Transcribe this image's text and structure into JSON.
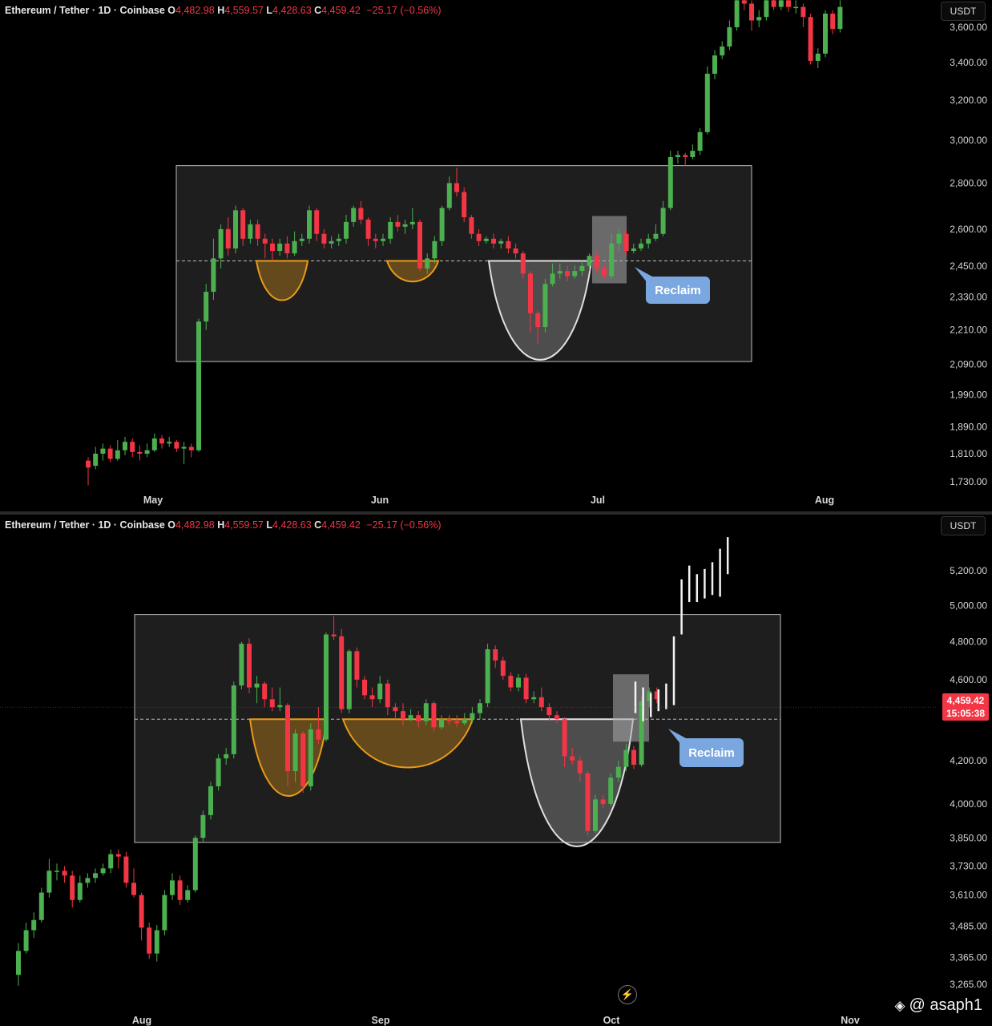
{
  "legend": {
    "symbol": "Ethereum / Tether · 1D · Coinbase",
    "open_label": "O",
    "open": "4,482.98",
    "high_label": "H",
    "high": "4,559.57",
    "low_label": "L",
    "low": "4,428.63",
    "close_label": "C",
    "close": "4,459.42",
    "change": "−25.17 (−0.56%)"
  },
  "unit": "USDT",
  "watermark": "@ asaph1",
  "colors": {
    "up": "#4caf50",
    "down": "#f23645",
    "bg": "#000000",
    "range_box": "#1e1e1e",
    "bowl_orange": "#e89a1a",
    "bowl_white": "#e0e0e0",
    "callout": "#7aa7e0"
  },
  "chart_data": [
    {
      "type": "candlestick",
      "panel": "top",
      "title": "",
      "x_ticks": [
        "May",
        "Jun",
        "Jul",
        "Aug"
      ],
      "y_ticks": [
        "3,600.00",
        "3,400.00",
        "3,200.00",
        "3,000.00",
        "2,800.00",
        "2,600.00",
        "2,450.00",
        "2,330.00",
        "2,210.00",
        "2,090.00",
        "1,990.00",
        "1,890.00",
        "1,810.00",
        "1,730.00"
      ],
      "y_scale": "log",
      "range_box": {
        "top": 2880,
        "bottom": 2100,
        "mid_dashed": 2470
      },
      "annotations": [
        {
          "type": "bowl",
          "color": "orange",
          "bottom": 2320
        },
        {
          "type": "bowl",
          "color": "orange",
          "bottom": 2390
        },
        {
          "type": "bowl",
          "color": "white",
          "bottom": 2110
        },
        {
          "type": "highlight",
          "label": ""
        },
        {
          "type": "callout",
          "text": "Reclaim"
        }
      ],
      "candles": [
        [
          1790,
          1770,
          1800,
          1720
        ],
        [
          1775,
          1810,
          1830,
          1765
        ],
        [
          1810,
          1825,
          1840,
          1790
        ],
        [
          1825,
          1795,
          1835,
          1785
        ],
        [
          1795,
          1820,
          1850,
          1790
        ],
        [
          1820,
          1845,
          1860,
          1805
        ],
        [
          1845,
          1815,
          1855,
          1800
        ],
        [
          1815,
          1810,
          1835,
          1790
        ],
        [
          1810,
          1820,
          1840,
          1800
        ],
        [
          1820,
          1855,
          1870,
          1815
        ],
        [
          1855,
          1840,
          1865,
          1825
        ],
        [
          1840,
          1845,
          1860,
          1830
        ],
        [
          1845,
          1825,
          1850,
          1815
        ],
        [
          1825,
          1830,
          1845,
          1780
        ],
        [
          1830,
          1820,
          1840,
          1800
        ],
        [
          1820,
          2240,
          2250,
          1815
        ],
        [
          2240,
          2350,
          2380,
          2210
        ],
        [
          2350,
          2480,
          2560,
          2320
        ],
        [
          2480,
          2600,
          2620,
          2440
        ],
        [
          2600,
          2520,
          2650,
          2490
        ],
        [
          2520,
          2680,
          2700,
          2500
        ],
        [
          2680,
          2560,
          2690,
          2530
        ],
        [
          2560,
          2620,
          2640,
          2540
        ],
        [
          2620,
          2560,
          2640,
          2530
        ],
        [
          2560,
          2540,
          2580,
          2480
        ],
        [
          2540,
          2510,
          2560,
          2470
        ],
        [
          2510,
          2540,
          2560,
          2490
        ],
        [
          2540,
          2500,
          2570,
          2480
        ],
        [
          2500,
          2550,
          2590,
          2490
        ],
        [
          2550,
          2560,
          2580,
          2530
        ],
        [
          2560,
          2680,
          2700,
          2540
        ],
        [
          2680,
          2580,
          2690,
          2550
        ],
        [
          2580,
          2540,
          2600,
          2520
        ],
        [
          2540,
          2550,
          2570,
          2520
        ],
        [
          2550,
          2560,
          2580,
          2530
        ],
        [
          2560,
          2630,
          2660,
          2540
        ],
        [
          2630,
          2690,
          2700,
          2610
        ],
        [
          2690,
          2640,
          2720,
          2620
        ],
        [
          2640,
          2560,
          2650,
          2530
        ],
        [
          2560,
          2550,
          2580,
          2520
        ],
        [
          2550,
          2560,
          2580,
          2530
        ],
        [
          2560,
          2630,
          2650,
          2540
        ],
        [
          2630,
          2610,
          2660,
          2590
        ],
        [
          2610,
          2620,
          2640,
          2580
        ],
        [
          2620,
          2630,
          2690,
          2600
        ],
        [
          2630,
          2440,
          2640,
          2430
        ],
        [
          2440,
          2480,
          2500,
          2420
        ],
        [
          2480,
          2550,
          2570,
          2460
        ],
        [
          2550,
          2690,
          2700,
          2530
        ],
        [
          2690,
          2800,
          2830,
          2680
        ],
        [
          2800,
          2760,
          2870,
          2740
        ],
        [
          2760,
          2650,
          2780,
          2630
        ],
        [
          2650,
          2580,
          2660,
          2560
        ],
        [
          2580,
          2550,
          2600,
          2530
        ],
        [
          2550,
          2560,
          2570,
          2540
        ],
        [
          2560,
          2540,
          2580,
          2520
        ],
        [
          2540,
          2550,
          2560,
          2520
        ],
        [
          2550,
          2520,
          2570,
          2500
        ],
        [
          2520,
          2500,
          2540,
          2480
        ],
        [
          2500,
          2420,
          2510,
          2400
        ],
        [
          2420,
          2270,
          2430,
          2200
        ],
        [
          2270,
          2220,
          2280,
          2160
        ],
        [
          2220,
          2380,
          2400,
          2200
        ],
        [
          2380,
          2420,
          2460,
          2370
        ],
        [
          2420,
          2430,
          2460,
          2400
        ],
        [
          2430,
          2410,
          2450,
          2390
        ],
        [
          2410,
          2430,
          2450,
          2400
        ],
        [
          2430,
          2450,
          2470,
          2410
        ],
        [
          2450,
          2490,
          2500,
          2430
        ],
        [
          2490,
          2440,
          2510,
          2420
        ],
        [
          2440,
          2410,
          2460,
          2400
        ],
        [
          2410,
          2540,
          2580,
          2400
        ],
        [
          2540,
          2580,
          2600,
          2510
        ],
        [
          2580,
          2510,
          2600,
          2490
        ],
        [
          2510,
          2520,
          2540,
          2500
        ],
        [
          2520,
          2540,
          2560,
          2510
        ],
        [
          2540,
          2560,
          2580,
          2520
        ],
        [
          2560,
          2580,
          2620,
          2550
        ],
        [
          2580,
          2690,
          2720,
          2570
        ],
        [
          2690,
          2920,
          2950,
          2680
        ],
        [
          2920,
          2930,
          2950,
          2890
        ],
        [
          2930,
          2920,
          2940,
          2880
        ],
        [
          2920,
          2950,
          2980,
          2910
        ],
        [
          2950,
          3040,
          3060,
          2930
        ],
        [
          3040,
          3340,
          3380,
          3030
        ],
        [
          3340,
          3440,
          3470,
          3310
        ],
        [
          3440,
          3490,
          3520,
          3420
        ],
        [
          3490,
          3600,
          3640,
          3470
        ],
        [
          3600,
          3760,
          3800,
          3580
        ],
        [
          3760,
          3740,
          3790,
          3700
        ],
        [
          3740,
          3640,
          3760,
          3580
        ],
        [
          3640,
          3660,
          3700,
          3600
        ],
        [
          3660,
          3760,
          3790,
          3640
        ],
        [
          3760,
          3720,
          3790,
          3700
        ],
        [
          3720,
          3760,
          3780,
          3700
        ],
        [
          3760,
          3720,
          3790,
          3690
        ],
        [
          3720,
          3720,
          3760,
          3680
        ],
        [
          3720,
          3660,
          3740,
          3600
        ],
        [
          3660,
          3410,
          3680,
          3390
        ],
        [
          3410,
          3450,
          3480,
          3370
        ],
        [
          3450,
          3680,
          3700,
          3430
        ],
        [
          3680,
          3590,
          3700,
          3560
        ],
        [
          3590,
          3720,
          3760,
          3570
        ]
      ]
    },
    {
      "type": "candlestick",
      "panel": "bottom",
      "title": "",
      "x_ticks": [
        "Aug",
        "Sep",
        "Oct",
        "Nov"
      ],
      "y_ticks": [
        "5,200.00",
        "5,000.00",
        "4,800.00",
        "4,600.00",
        "4,200.00",
        "4,000.00",
        "3,850.00",
        "3,730.00",
        "3,610.00",
        "3,485.00",
        "3,365.00",
        "3,265.00"
      ],
      "y_scale": "log",
      "last_price": "4,459.42",
      "countdown": "15:05:38",
      "range_box": {
        "top": 4950,
        "bottom": 3830,
        "mid_dashed": 4400
      },
      "annotations": [
        {
          "type": "bowl",
          "color": "orange",
          "bottom": 4040
        },
        {
          "type": "bowl",
          "color": "orange",
          "bottom": 4170
        },
        {
          "type": "bowl",
          "color": "white",
          "bottom": 3820
        },
        {
          "type": "highlight",
          "label": ""
        },
        {
          "type": "callout",
          "text": "Reclaim"
        },
        {
          "type": "projection",
          "color": "white"
        }
      ],
      "candles": [
        [
          3300,
          3390,
          3420,
          3260
        ],
        [
          3390,
          3470,
          3500,
          3380
        ],
        [
          3470,
          3510,
          3540,
          3440
        ],
        [
          3510,
          3620,
          3640,
          3500
        ],
        [
          3620,
          3710,
          3760,
          3600
        ],
        [
          3710,
          3710,
          3740,
          3670
        ],
        [
          3710,
          3690,
          3730,
          3660
        ],
        [
          3690,
          3590,
          3710,
          3560
        ],
        [
          3590,
          3660,
          3690,
          3580
        ],
        [
          3660,
          3680,
          3700,
          3640
        ],
        [
          3680,
          3700,
          3720,
          3660
        ],
        [
          3700,
          3720,
          3740,
          3690
        ],
        [
          3720,
          3780,
          3800,
          3700
        ],
        [
          3780,
          3770,
          3800,
          3720
        ],
        [
          3770,
          3660,
          3790,
          3640
        ],
        [
          3660,
          3610,
          3720,
          3600
        ],
        [
          3610,
          3480,
          3620,
          3430
        ],
        [
          3480,
          3380,
          3500,
          3360
        ],
        [
          3380,
          3470,
          3490,
          3350
        ],
        [
          3470,
          3610,
          3630,
          3450
        ],
        [
          3610,
          3670,
          3700,
          3590
        ],
        [
          3670,
          3590,
          3690,
          3570
        ],
        [
          3590,
          3630,
          3650,
          3580
        ],
        [
          3630,
          3850,
          3860,
          3620
        ],
        [
          3850,
          3950,
          3970,
          3830
        ],
        [
          3950,
          4080,
          4100,
          3930
        ],
        [
          4080,
          4210,
          4230,
          4060
        ],
        [
          4210,
          4230,
          4260,
          4180
        ],
        [
          4230,
          4570,
          4590,
          4210
        ],
        [
          4570,
          4790,
          4800,
          4550
        ],
        [
          4790,
          4560,
          4820,
          4530
        ],
        [
          4560,
          4580,
          4620,
          4480
        ],
        [
          4580,
          4500,
          4590,
          4460
        ],
        [
          4500,
          4460,
          4560,
          4440
        ],
        [
          4460,
          4470,
          4560,
          4440
        ],
        [
          4470,
          4150,
          4480,
          4080
        ],
        [
          4150,
          4330,
          4350,
          4100
        ],
        [
          4330,
          4080,
          4340,
          4050
        ],
        [
          4080,
          4350,
          4380,
          4060
        ],
        [
          4350,
          4300,
          4460,
          4280
        ],
        [
          4300,
          4840,
          4850,
          4290
        ],
        [
          4840,
          4830,
          4940,
          4810
        ],
        [
          4830,
          4450,
          4870,
          4430
        ],
        [
          4450,
          4750,
          4760,
          4430
        ],
        [
          4750,
          4600,
          4770,
          4560
        ],
        [
          4600,
          4520,
          4620,
          4500
        ],
        [
          4520,
          4500,
          4560,
          4460
        ],
        [
          4500,
          4580,
          4620,
          4480
        ],
        [
          4580,
          4460,
          4600,
          4420
        ],
        [
          4460,
          4440,
          4480,
          4400
        ],
        [
          4440,
          4400,
          4480,
          4370
        ],
        [
          4400,
          4420,
          4450,
          4390
        ],
        [
          4420,
          4390,
          4440,
          4360
        ],
        [
          4390,
          4480,
          4500,
          4370
        ],
        [
          4480,
          4360,
          4490,
          4340
        ],
        [
          4360,
          4400,
          4420,
          4350
        ],
        [
          4400,
          4390,
          4420,
          4370
        ],
        [
          4390,
          4380,
          4420,
          4360
        ],
        [
          4380,
          4400,
          4430,
          4370
        ],
        [
          4400,
          4430,
          4460,
          4380
        ],
        [
          4430,
          4480,
          4500,
          4400
        ],
        [
          4480,
          4760,
          4790,
          4460
        ],
        [
          4760,
          4700,
          4780,
          4660
        ],
        [
          4700,
          4620,
          4720,
          4600
        ],
        [
          4620,
          4560,
          4640,
          4540
        ],
        [
          4560,
          4610,
          4630,
          4540
        ],
        [
          4610,
          4500,
          4630,
          4480
        ],
        [
          4500,
          4510,
          4540,
          4480
        ],
        [
          4510,
          4460,
          4560,
          4440
        ],
        [
          4460,
          4420,
          4480,
          4390
        ],
        [
          4420,
          4400,
          4440,
          4380
        ],
        [
          4400,
          4220,
          4410,
          4170
        ],
        [
          4220,
          4200,
          4260,
          4180
        ],
        [
          4200,
          4140,
          4220,
          4100
        ],
        [
          4140,
          3880,
          4150,
          3860
        ],
        [
          3880,
          4020,
          4040,
          3870
        ],
        [
          4020,
          4000,
          4040,
          3980
        ],
        [
          4000,
          4120,
          4140,
          3990
        ],
        [
          4120,
          4170,
          4200,
          4100
        ],
        [
          4170,
          4250,
          4280,
          4150
        ],
        [
          4250,
          4180,
          4270,
          4160
        ],
        [
          4180,
          4490,
          4510,
          4170
        ],
        [
          4490,
          4540,
          4560,
          4460
        ],
        [
          4540,
          4500,
          4560,
          4480
        ]
      ],
      "projection_bars": [
        [
          4590,
          4430
        ],
        [
          4560,
          4390
        ],
        [
          4530,
          4410
        ],
        [
          4550,
          4440
        ],
        [
          4580,
          4450
        ],
        [
          4830,
          4470
        ],
        [
          5150,
          4840
        ],
        [
          5230,
          5020
        ],
        [
          5180,
          5020
        ],
        [
          5210,
          5040
        ],
        [
          5250,
          5060
        ],
        [
          5330,
          5050
        ],
        [
          5400,
          5180
        ]
      ]
    }
  ]
}
